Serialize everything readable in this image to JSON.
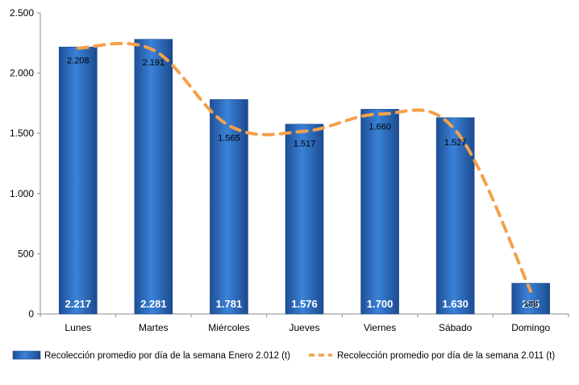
{
  "chart_data": {
    "type": "bar",
    "categories": [
      "Lunes",
      "Martes",
      "Miércoles",
      "Jueves",
      "Viernes",
      "Sábado",
      "Domingo"
    ],
    "series": [
      {
        "name": "Recolección promedio por día de la semana Enero 2.012 (t)",
        "type": "bar",
        "values": [
          2217,
          2281,
          1781,
          1576,
          1700,
          1630,
          255
        ],
        "labels": [
          "2.217",
          "2.281",
          "1.781",
          "1.576",
          "1.700",
          "1.630",
          "255"
        ]
      },
      {
        "name": "Recolección promedio por día de la semana 2.011 (t)",
        "type": "line",
        "values": [
          2208,
          2191,
          1565,
          1517,
          1660,
          1527,
          188
        ],
        "labels": [
          "2.208",
          "2.191",
          "1.565",
          "1.517",
          "1.660",
          "1.527",
          "188"
        ]
      }
    ],
    "ylim": [
      0,
      2500
    ],
    "yticks": [
      0,
      500,
      1000,
      1500,
      2000,
      2500
    ],
    "ytick_labels": [
      "0",
      "500",
      "1.000",
      "1.500",
      "2.000",
      "2.500"
    ],
    "legend_position": "bottom",
    "grid": false,
    "colors": {
      "bar": "#2e6fc4",
      "line": "#f5a04a"
    }
  }
}
